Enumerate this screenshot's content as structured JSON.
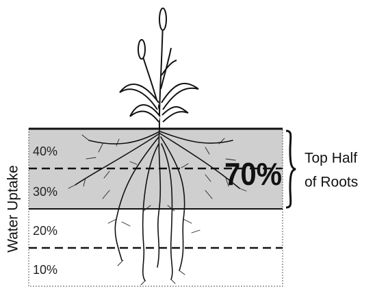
{
  "zones": [
    "40%",
    "30%",
    "20%",
    "10%"
  ],
  "top_half_total": "70%",
  "brace_label": [
    "Top Half",
    "of Roots"
  ],
  "side_label": "Water Uptake"
}
